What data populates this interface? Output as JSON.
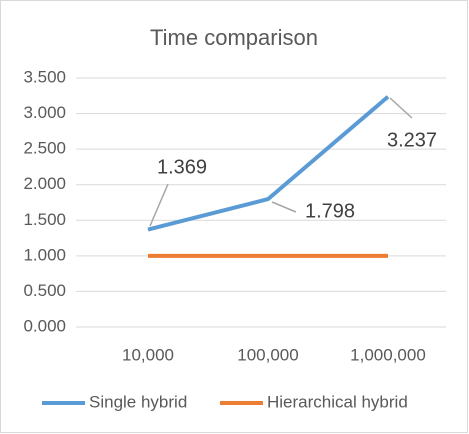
{
  "chart_data": {
    "type": "line",
    "title": "Time comparison",
    "categories": [
      "10,000",
      "100,000",
      "1,000,000"
    ],
    "series": [
      {
        "name": "Single hybrid",
        "color": "#5b9bd5",
        "values": [
          1.369,
          1.798,
          3.237
        ],
        "data_labels": true
      },
      {
        "name": "Hierarchical hybrid",
        "color": "#ed7d31",
        "values": [
          1,
          1,
          1
        ]
      }
    ],
    "ylim": [
      0,
      3.5
    ],
    "yticks": [
      {
        "value": 0,
        "label": "0.000"
      },
      {
        "value": 0.5,
        "label": "0.500"
      },
      {
        "value": 1,
        "label": "1.000"
      },
      {
        "value": 1.5,
        "label": "1.500"
      },
      {
        "value": 2,
        "label": "2.000"
      },
      {
        "value": 2.5,
        "label": "2.500"
      },
      {
        "value": 3,
        "label": "3.000"
      },
      {
        "value": 3.5,
        "label": "3.500"
      }
    ],
    "grid": true,
    "legend": "bottom"
  }
}
